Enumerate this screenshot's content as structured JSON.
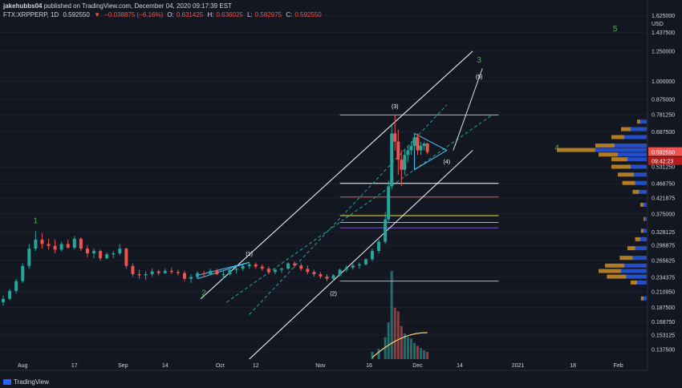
{
  "header": {
    "publisher": "jakehubbs04",
    "published_text": " published on TradingView.com, December 04, 2020 09:17:39 EST",
    "symbol": "FTX:XRPPERP, 1D",
    "last": "0.592550",
    "change": "−0.038875 (−6.16%)",
    "open_label": "O:",
    "open": "0.631425",
    "high_label": "H:",
    "high": "0.636025",
    "low_label": "L:",
    "low": "0.582975",
    "close_label": "C:",
    "close": "0.592550"
  },
  "footer": {
    "brand": "TradingView"
  },
  "colors": {
    "up": "#26a69a",
    "down": "#ef5350",
    "background": "#131722",
    "grid": "#1e222d",
    "text": "#d1d4dc",
    "wave": "#4caf50",
    "line": "#e0e0e0",
    "fib": "#26a69a"
  },
  "price_axis": {
    "unit": "USD",
    "ticks": [
      "1.625000",
      "1.437500",
      "1.250000",
      "1.000000",
      "0.875000",
      "0.781250",
      "0.687500",
      "0.531250",
      "0.468750",
      "0.421875",
      "0.375000",
      "0.328125",
      "0.296875",
      "0.265625",
      "0.234375",
      "0.210950",
      "0.187500",
      "0.168750",
      "0.153125",
      "0.137500"
    ],
    "last_price_label": "0.592550",
    "countdown_label": "09:42:23"
  },
  "time_axis": {
    "ticks": [
      "Aug",
      "17",
      "Sep",
      "14",
      "Oct",
      "12",
      "Nov",
      "16",
      "Dec",
      "14",
      "2021",
      "18",
      "Feb"
    ]
  },
  "wave_labels": {
    "major": [
      "1",
      "2",
      "3",
      "4",
      "5"
    ],
    "minor": [
      "(1)",
      "(2)",
      "(3)",
      "(4)",
      "(5)"
    ]
  },
  "chart_data": {
    "type": "candlestick",
    "symbol": "FTX:XRPPERP",
    "interval": "1D",
    "y_scale": "log",
    "ylim": [
      0.125,
      1.7
    ],
    "xlim": [
      "2020-07-25",
      "2021-02-10"
    ],
    "candles": [
      {
        "date": "2020-07-26",
        "open": 0.195,
        "high": 0.205,
        "low": 0.19,
        "close": 0.2
      },
      {
        "date": "2020-07-28",
        "open": 0.2,
        "high": 0.215,
        "low": 0.198,
        "close": 0.212
      },
      {
        "date": "2020-07-30",
        "open": 0.212,
        "high": 0.232,
        "low": 0.208,
        "close": 0.228
      },
      {
        "date": "2020-08-01",
        "open": 0.228,
        "high": 0.26,
        "low": 0.225,
        "close": 0.255
      },
      {
        "date": "2020-08-03",
        "open": 0.255,
        "high": 0.3,
        "low": 0.25,
        "close": 0.29
      },
      {
        "date": "2020-08-05",
        "open": 0.29,
        "high": 0.33,
        "low": 0.285,
        "close": 0.31
      },
      {
        "date": "2020-08-07",
        "open": 0.31,
        "high": 0.325,
        "low": 0.29,
        "close": 0.3
      },
      {
        "date": "2020-08-09",
        "open": 0.3,
        "high": 0.312,
        "low": 0.288,
        "close": 0.296
      },
      {
        "date": "2020-08-11",
        "open": 0.296,
        "high": 0.31,
        "low": 0.28,
        "close": 0.288
      },
      {
        "date": "2020-08-13",
        "open": 0.288,
        "high": 0.305,
        "low": 0.284,
        "close": 0.3
      },
      {
        "date": "2020-08-15",
        "open": 0.3,
        "high": 0.31,
        "low": 0.29,
        "close": 0.292
      },
      {
        "date": "2020-08-17",
        "open": 0.292,
        "high": 0.318,
        "low": 0.288,
        "close": 0.312
      },
      {
        "date": "2020-08-19",
        "open": 0.312,
        "high": 0.315,
        "low": 0.285,
        "close": 0.29
      },
      {
        "date": "2020-08-21",
        "open": 0.29,
        "high": 0.298,
        "low": 0.272,
        "close": 0.28
      },
      {
        "date": "2020-08-23",
        "open": 0.28,
        "high": 0.29,
        "low": 0.27,
        "close": 0.285
      },
      {
        "date": "2020-08-25",
        "open": 0.285,
        "high": 0.288,
        "low": 0.265,
        "close": 0.27
      },
      {
        "date": "2020-08-27",
        "open": 0.27,
        "high": 0.282,
        "low": 0.268,
        "close": 0.278
      },
      {
        "date": "2020-08-29",
        "open": 0.278,
        "high": 0.285,
        "low": 0.27,
        "close": 0.28
      },
      {
        "date": "2020-08-31",
        "open": 0.28,
        "high": 0.3,
        "low": 0.276,
        "close": 0.29
      },
      {
        "date": "2020-09-02",
        "open": 0.29,
        "high": 0.292,
        "low": 0.25,
        "close": 0.255
      },
      {
        "date": "2020-09-04",
        "open": 0.255,
        "high": 0.26,
        "low": 0.236,
        "close": 0.24
      },
      {
        "date": "2020-09-06",
        "open": 0.24,
        "high": 0.248,
        "low": 0.232,
        "close": 0.238
      },
      {
        "date": "2020-09-08",
        "open": 0.238,
        "high": 0.245,
        "low": 0.23,
        "close": 0.24
      },
      {
        "date": "2020-09-10",
        "open": 0.24,
        "high": 0.25,
        "low": 0.236,
        "close": 0.245
      },
      {
        "date": "2020-09-12",
        "open": 0.245,
        "high": 0.248,
        "low": 0.238,
        "close": 0.242
      },
      {
        "date": "2020-09-14",
        "open": 0.242,
        "high": 0.25,
        "low": 0.24,
        "close": 0.246
      },
      {
        "date": "2020-09-16",
        "open": 0.246,
        "high": 0.252,
        "low": 0.24,
        "close": 0.244
      },
      {
        "date": "2020-09-18",
        "open": 0.244,
        "high": 0.248,
        "low": 0.238,
        "close": 0.242
      },
      {
        "date": "2020-09-20",
        "open": 0.242,
        "high": 0.246,
        "low": 0.228,
        "close": 0.232
      },
      {
        "date": "2020-09-22",
        "open": 0.232,
        "high": 0.24,
        "low": 0.225,
        "close": 0.235
      },
      {
        "date": "2020-09-24",
        "open": 0.235,
        "high": 0.245,
        "low": 0.232,
        "close": 0.242
      },
      {
        "date": "2020-09-26",
        "open": 0.242,
        "high": 0.246,
        "low": 0.236,
        "close": 0.24
      },
      {
        "date": "2020-09-28",
        "open": 0.24,
        "high": 0.25,
        "low": 0.238,
        "close": 0.246
      },
      {
        "date": "2020-09-30",
        "open": 0.246,
        "high": 0.25,
        "low": 0.238,
        "close": 0.24
      },
      {
        "date": "2020-10-02",
        "open": 0.24,
        "high": 0.246,
        "low": 0.232,
        "close": 0.24
      },
      {
        "date": "2020-10-04",
        "open": 0.24,
        "high": 0.25,
        "low": 0.238,
        "close": 0.248
      },
      {
        "date": "2020-10-06",
        "open": 0.248,
        "high": 0.254,
        "low": 0.242,
        "close": 0.25
      },
      {
        "date": "2020-10-08",
        "open": 0.25,
        "high": 0.258,
        "low": 0.246,
        "close": 0.255
      },
      {
        "date": "2020-10-10",
        "open": 0.255,
        "high": 0.262,
        "low": 0.25,
        "close": 0.258
      },
      {
        "date": "2020-10-12",
        "open": 0.258,
        "high": 0.262,
        "low": 0.25,
        "close": 0.254
      },
      {
        "date": "2020-10-14",
        "open": 0.254,
        "high": 0.258,
        "low": 0.246,
        "close": 0.25
      },
      {
        "date": "2020-10-16",
        "open": 0.25,
        "high": 0.254,
        "low": 0.24,
        "close": 0.244
      },
      {
        "date": "2020-10-18",
        "open": 0.244,
        "high": 0.25,
        "low": 0.24,
        "close": 0.248
      },
      {
        "date": "2020-10-20",
        "open": 0.248,
        "high": 0.252,
        "low": 0.242,
        "close": 0.25
      },
      {
        "date": "2020-10-22",
        "open": 0.25,
        "high": 0.262,
        "low": 0.248,
        "close": 0.26
      },
      {
        "date": "2020-10-24",
        "open": 0.26,
        "high": 0.264,
        "low": 0.252,
        "close": 0.256
      },
      {
        "date": "2020-10-26",
        "open": 0.256,
        "high": 0.26,
        "low": 0.246,
        "close": 0.25
      },
      {
        "date": "2020-10-28",
        "open": 0.25,
        "high": 0.256,
        "low": 0.24,
        "close": 0.244
      },
      {
        "date": "2020-10-30",
        "open": 0.244,
        "high": 0.248,
        "low": 0.236,
        "close": 0.24
      },
      {
        "date": "2020-11-01",
        "open": 0.24,
        "high": 0.244,
        "low": 0.232,
        "close": 0.236
      },
      {
        "date": "2020-11-03",
        "open": 0.236,
        "high": 0.24,
        "low": 0.228,
        "close": 0.232
      },
      {
        "date": "2020-11-05",
        "open": 0.232,
        "high": 0.24,
        "low": 0.228,
        "close": 0.238
      },
      {
        "date": "2020-11-07",
        "open": 0.238,
        "high": 0.25,
        "low": 0.236,
        "close": 0.248
      },
      {
        "date": "2020-11-09",
        "open": 0.248,
        "high": 0.256,
        "low": 0.244,
        "close": 0.252
      },
      {
        "date": "2020-11-11",
        "open": 0.252,
        "high": 0.26,
        "low": 0.248,
        "close": 0.256
      },
      {
        "date": "2020-11-13",
        "open": 0.256,
        "high": 0.262,
        "low": 0.25,
        "close": 0.258
      },
      {
        "date": "2020-11-15",
        "open": 0.258,
        "high": 0.27,
        "low": 0.256,
        "close": 0.268
      },
      {
        "date": "2020-11-17",
        "open": 0.268,
        "high": 0.29,
        "low": 0.264,
        "close": 0.285
      },
      {
        "date": "2020-11-19",
        "open": 0.285,
        "high": 0.31,
        "low": 0.28,
        "close": 0.305
      },
      {
        "date": "2020-11-21",
        "open": 0.305,
        "high": 0.38,
        "low": 0.3,
        "close": 0.36
      },
      {
        "date": "2020-11-22",
        "open": 0.36,
        "high": 0.48,
        "low": 0.35,
        "close": 0.46
      },
      {
        "date": "2020-11-23",
        "open": 0.46,
        "high": 0.72,
        "low": 0.45,
        "close": 0.68
      },
      {
        "date": "2020-11-24",
        "open": 0.68,
        "high": 0.78,
        "low": 0.6,
        "close": 0.64
      },
      {
        "date": "2020-11-25",
        "open": 0.64,
        "high": 0.7,
        "low": 0.5,
        "close": 0.56
      },
      {
        "date": "2020-11-26",
        "open": 0.56,
        "high": 0.6,
        "low": 0.46,
        "close": 0.52
      },
      {
        "date": "2020-11-27",
        "open": 0.52,
        "high": 0.6,
        "low": 0.5,
        "close": 0.58
      },
      {
        "date": "2020-11-28",
        "open": 0.58,
        "high": 0.62,
        "low": 0.55,
        "close": 0.6
      },
      {
        "date": "2020-11-29",
        "open": 0.6,
        "high": 0.64,
        "low": 0.58,
        "close": 0.62
      },
      {
        "date": "2020-11-30",
        "open": 0.62,
        "high": 0.68,
        "low": 0.6,
        "close": 0.66
      },
      {
        "date": "2020-12-01",
        "open": 0.66,
        "high": 0.68,
        "low": 0.58,
        "close": 0.6
      },
      {
        "date": "2020-12-02",
        "open": 0.6,
        "high": 0.64,
        "low": 0.58,
        "close": 0.62
      },
      {
        "date": "2020-12-03",
        "open": 0.62,
        "high": 0.64,
        "low": 0.6,
        "close": 0.631425
      },
      {
        "date": "2020-12-04",
        "open": 0.631425,
        "high": 0.636025,
        "low": 0.582975,
        "close": 0.59255
      }
    ],
    "volume": [
      {
        "date": "2020-11-17",
        "value": 1.0
      },
      {
        "date": "2020-11-19",
        "value": 1.4
      },
      {
        "date": "2020-11-21",
        "value": 3.0
      },
      {
        "date": "2020-11-22",
        "value": 5.0
      },
      {
        "date": "2020-11-23",
        "value": 12.0
      },
      {
        "date": "2020-11-24",
        "value": 7.0
      },
      {
        "date": "2020-11-25",
        "value": 6.5
      },
      {
        "date": "2020-11-26",
        "value": 4.5
      },
      {
        "date": "2020-11-27",
        "value": 3.5
      },
      {
        "date": "2020-11-28",
        "value": 3.0
      },
      {
        "date": "2020-11-29",
        "value": 2.8
      },
      {
        "date": "2020-11-30",
        "value": 2.2
      },
      {
        "date": "2020-12-01",
        "value": 1.8
      },
      {
        "date": "2020-12-02",
        "value": 1.5
      },
      {
        "date": "2020-12-03",
        "value": 1.2
      },
      {
        "date": "2020-12-04",
        "value": 1.0
      }
    ],
    "horizontal_levels": [
      {
        "price": 0.78,
        "color": "#b2b5be",
        "from": "2020-11-07",
        "to": "2020-12-26"
      },
      {
        "price": 0.47,
        "color": "#ffffff",
        "from": "2020-11-07",
        "to": "2020-12-26"
      },
      {
        "price": 0.425,
        "color": "#ef5350",
        "from": "2020-11-07",
        "to": "2020-12-26"
      },
      {
        "price": 0.37,
        "color": "#f0e442",
        "from": "2020-11-07",
        "to": "2020-12-26"
      },
      {
        "price": 0.352,
        "color": "#f5a623",
        "from": "2020-11-07",
        "to": "2020-12-26"
      },
      {
        "price": 0.338,
        "color": "#7e57c2",
        "from": "2020-11-07",
        "to": "2020-12-26"
      },
      {
        "price": 0.228,
        "color": "#b2b5be",
        "from": "2020-11-07",
        "to": "2020-12-26"
      }
    ],
    "trend_lines": [
      {
        "from": [
          "2020-10-10",
          0.128
        ],
        "to": [
          "2020-12-18",
          0.6
        ],
        "color": "#ffffff",
        "style": "solid"
      },
      {
        "from": [
          "2020-09-25",
          0.2
        ],
        "to": [
          "2020-12-18",
          1.25
        ],
        "color": "#ffffff",
        "style": "solid"
      },
      {
        "from": [
          "2020-10-03",
          0.195
        ],
        "to": [
          "2020-12-24",
          0.78
        ],
        "color": "#26a69a",
        "style": "dashed"
      },
      {
        "from": [
          "2020-10-10",
          0.178
        ],
        "to": [
          "2020-12-10",
          0.84
        ],
        "color": "#26a69a",
        "style": "dashed"
      },
      {
        "from": [
          "2020-12-12",
          0.6
        ],
        "to": [
          "2020-12-21",
          1.1
        ],
        "color": "#e0e0e0",
        "style": "solid"
      }
    ],
    "triangles": [
      {
        "points": [
          [
            "2020-09-24",
            0.238
          ],
          [
            "2020-10-10",
            0.262
          ],
          [
            "2020-09-24",
            0.232
          ]
        ],
        "color": "#4fc3f7"
      },
      {
        "points": [
          [
            "2020-11-30",
            0.68
          ],
          [
            "2020-12-10",
            0.6
          ],
          [
            "2020-11-30",
            0.52
          ]
        ],
        "color": "#4fc3f7"
      }
    ],
    "annotations": [
      {
        "text": "1",
        "date": "2020-08-05",
        "price": 0.35
      },
      {
        "text": "2",
        "date": "2020-09-26",
        "price": 0.205
      },
      {
        "text": "3",
        "date": "2020-12-20",
        "price": 1.15
      },
      {
        "text": "4",
        "date": "2021-01-13",
        "price": 0.6
      },
      {
        "text": "5",
        "date": "2021-01-31",
        "price": 1.45
      },
      {
        "text": "(1)",
        "date": "2020-10-10",
        "price": 0.275
      },
      {
        "text": "(2)",
        "date": "2020-11-05",
        "price": 0.205
      },
      {
        "text": "(3)",
        "date": "2020-11-24",
        "price": 0.82
      },
      {
        "text": "(4)",
        "date": "2020-12-10",
        "price": 0.545
      },
      {
        "text": "(5)",
        "date": "2020-12-20",
        "price": 1.02
      }
    ],
    "volume_ma": [
      [
        0.5,
        0.5
      ],
      [
        0.55,
        0.6
      ]
    ],
    "volume_profile": [
      {
        "price": 0.74,
        "up": 0.1,
        "down": 0.05
      },
      {
        "price": 0.7,
        "up": 0.25,
        "down": 0.15
      },
      {
        "price": 0.66,
        "up": 0.35,
        "down": 0.2
      },
      {
        "price": 0.62,
        "up": 0.5,
        "down": 0.3
      },
      {
        "price": 0.6,
        "up": 0.8,
        "down": 0.6
      },
      {
        "price": 0.58,
        "up": 0.45,
        "down": 0.3
      },
      {
        "price": 0.56,
        "up": 0.3,
        "down": 0.25
      },
      {
        "price": 0.53,
        "up": 0.25,
        "down": 0.3
      },
      {
        "price": 0.5,
        "up": 0.2,
        "down": 0.25
      },
      {
        "price": 0.47,
        "up": 0.18,
        "down": 0.2
      },
      {
        "price": 0.44,
        "up": 0.12,
        "down": 0.1
      },
      {
        "price": 0.4,
        "up": 0.05,
        "down": 0.05
      },
      {
        "price": 0.36,
        "up": 0.03,
        "down": 0.02
      },
      {
        "price": 0.33,
        "up": 0.05,
        "down": 0.04
      },
      {
        "price": 0.31,
        "up": 0.1,
        "down": 0.08
      },
      {
        "price": 0.29,
        "up": 0.18,
        "down": 0.12
      },
      {
        "price": 0.27,
        "up": 0.22,
        "down": 0.2
      },
      {
        "price": 0.255,
        "up": 0.35,
        "down": 0.3
      },
      {
        "price": 0.245,
        "up": 0.4,
        "down": 0.35
      },
      {
        "price": 0.235,
        "up": 0.32,
        "down": 0.3
      },
      {
        "price": 0.225,
        "up": 0.15,
        "down": 0.1
      },
      {
        "price": 0.2,
        "up": 0.05,
        "down": 0.04
      }
    ]
  }
}
